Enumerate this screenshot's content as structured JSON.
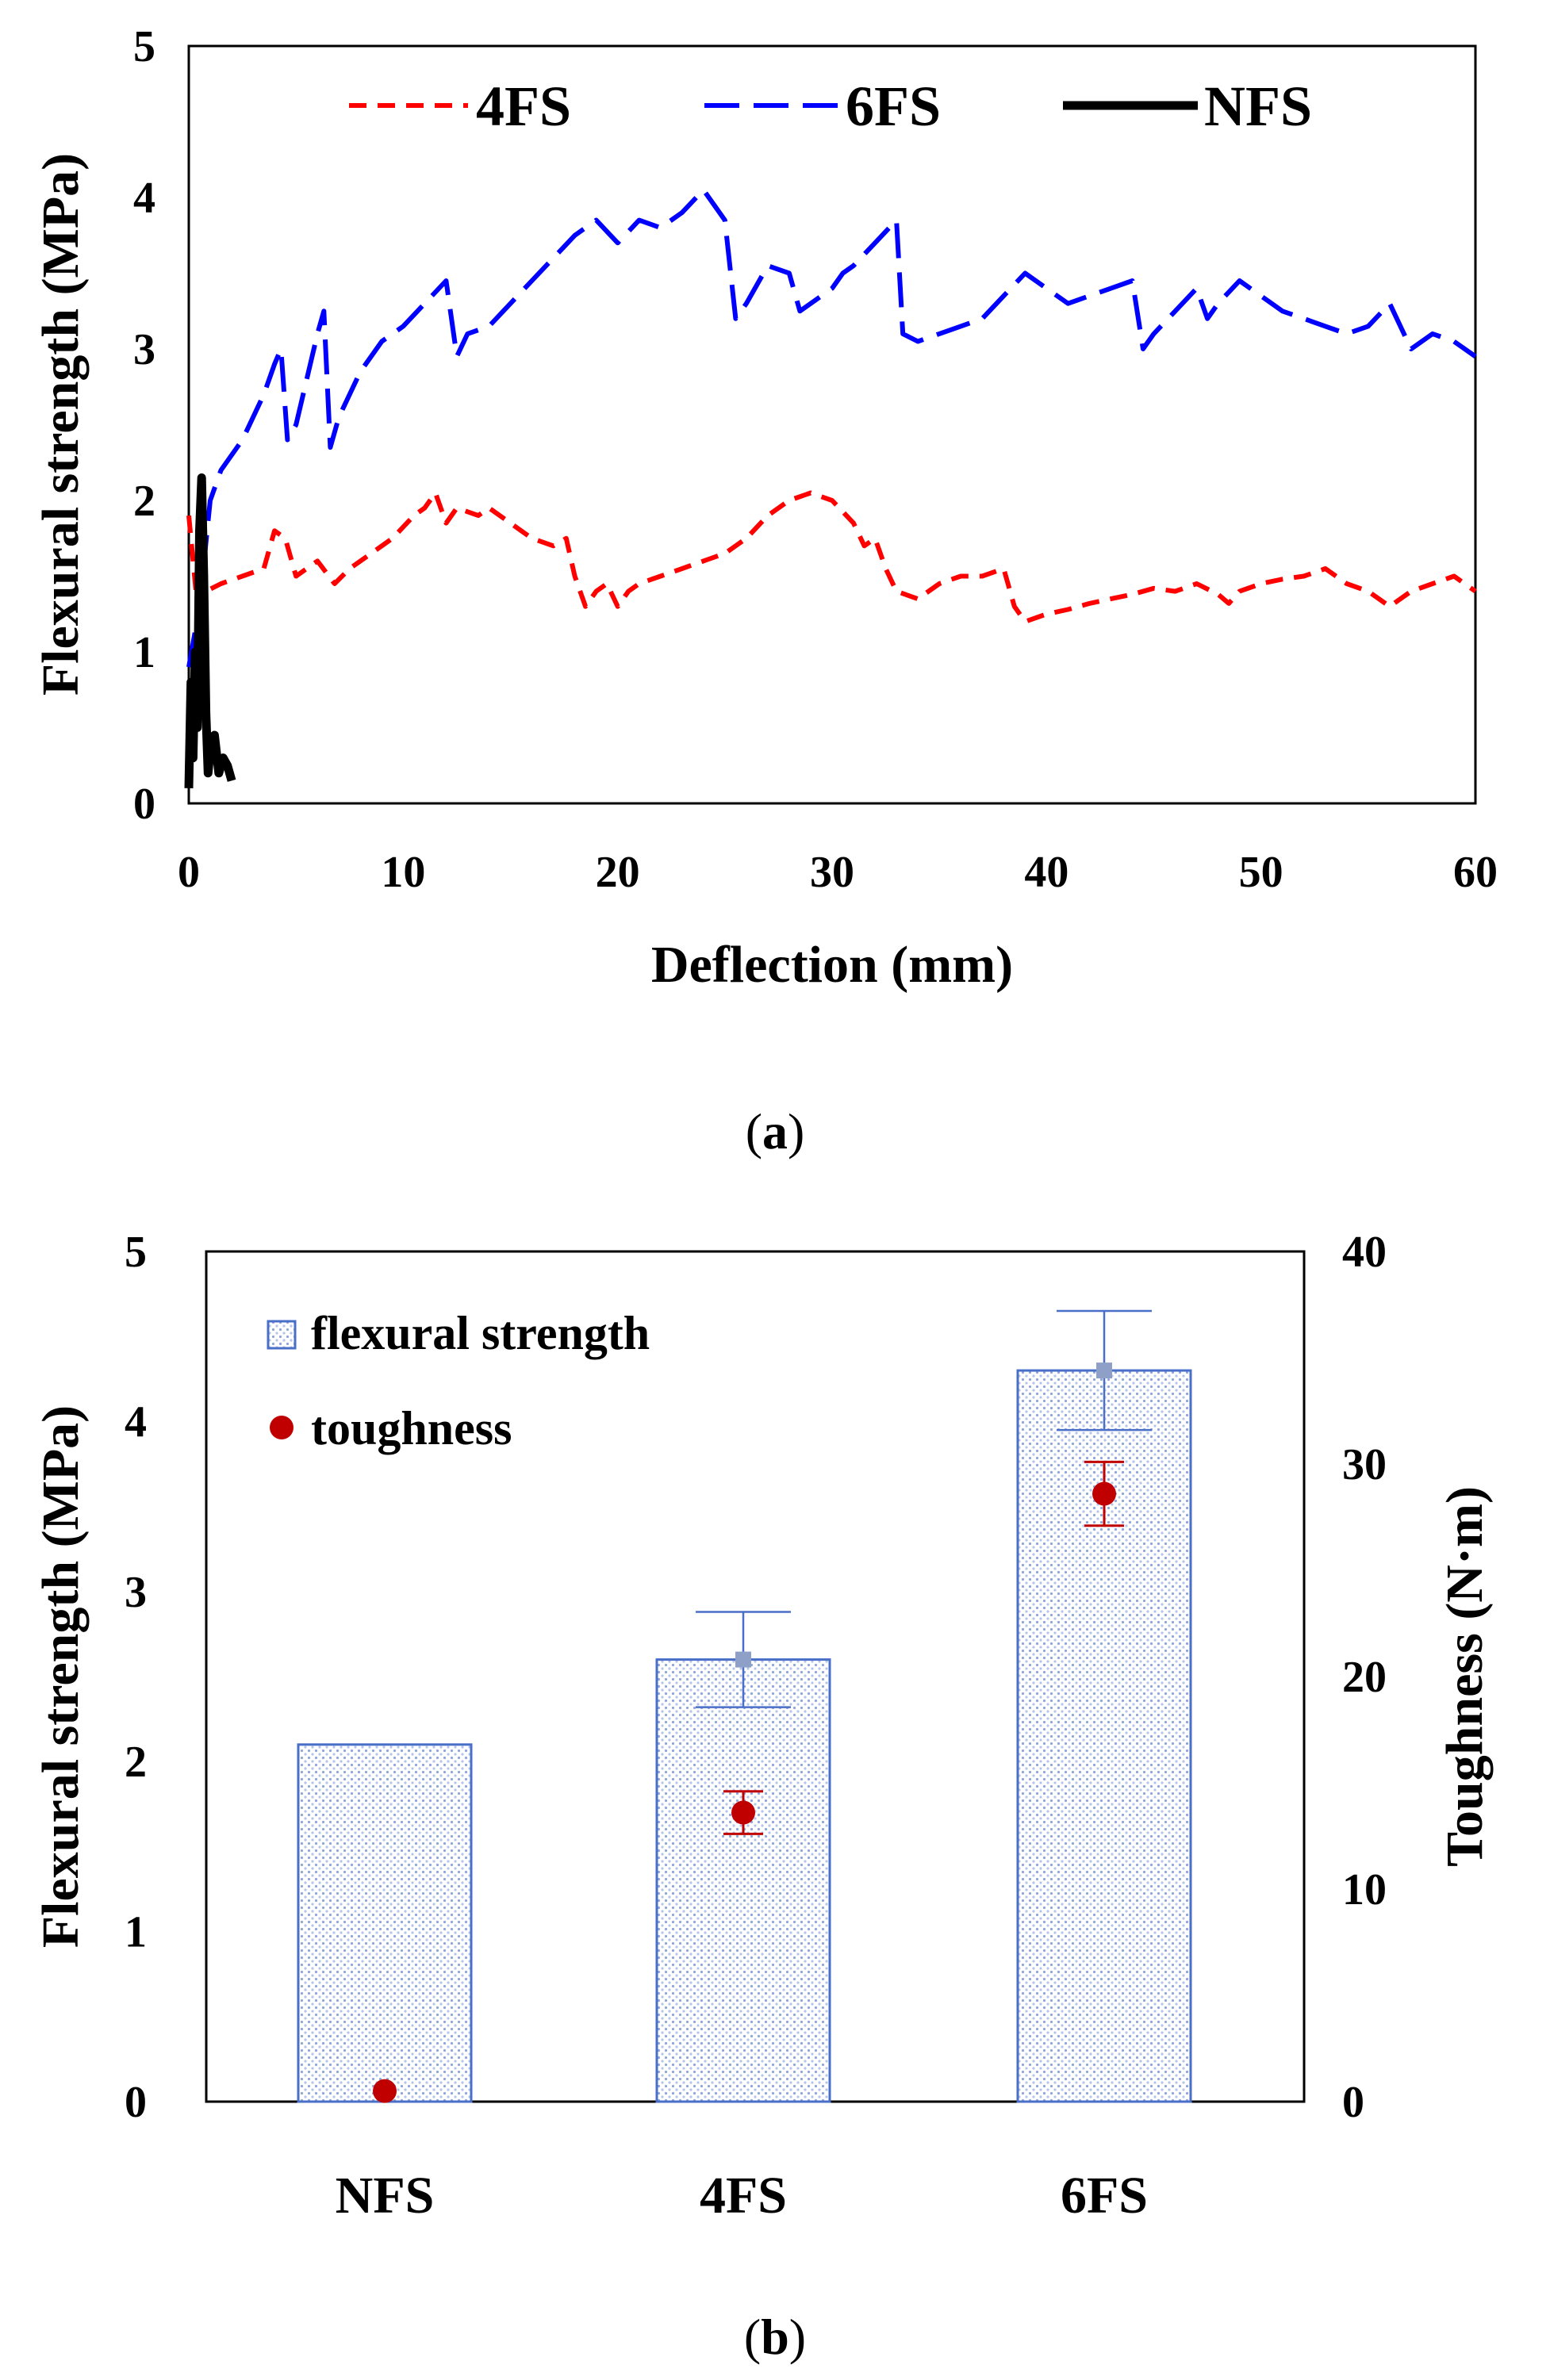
{
  "chart_data": [
    {
      "type": "line",
      "caption": {
        "open": "(",
        "letter": "a",
        "close": ")"
      },
      "xlabel": "Deflection (mm)",
      "ylabel": "Flexural strength (MPa)",
      "xlim": [
        0,
        60
      ],
      "ylim": [
        0,
        5
      ],
      "xticks": [
        0,
        10,
        20,
        30,
        40,
        50,
        60
      ],
      "yticks": [
        0,
        1,
        2,
        3,
        4,
        5
      ],
      "grid": false,
      "legend_position": "top",
      "series": [
        {
          "name": "4FS",
          "color": "#ff0000",
          "style": "short-dash",
          "points": [
            [
              0,
              1.9
            ],
            [
              0.2,
              1.6
            ],
            [
              0.4,
              1.3
            ],
            [
              0.8,
              1.4
            ],
            [
              1.5,
              1.45
            ],
            [
              2.5,
              1.5
            ],
            [
              3.5,
              1.55
            ],
            [
              4,
              1.8
            ],
            [
              4.5,
              1.75
            ],
            [
              5,
              1.5
            ],
            [
              5.5,
              1.55
            ],
            [
              6,
              1.6
            ],
            [
              6.8,
              1.45
            ],
            [
              7.5,
              1.55
            ],
            [
              8.5,
              1.65
            ],
            [
              9.5,
              1.75
            ],
            [
              10.5,
              1.9
            ],
            [
              11,
              1.95
            ],
            [
              11.5,
              2.05
            ],
            [
              12,
              1.85
            ],
            [
              12.5,
              1.95
            ],
            [
              13.5,
              1.9
            ],
            [
              14,
              1.95
            ],
            [
              15,
              1.85
            ],
            [
              16,
              1.75
            ],
            [
              17,
              1.7
            ],
            [
              17.6,
              1.75
            ],
            [
              18,
              1.5
            ],
            [
              18.5,
              1.3
            ],
            [
              19,
              1.4
            ],
            [
              19.5,
              1.45
            ],
            [
              20,
              1.3
            ],
            [
              20.5,
              1.4
            ],
            [
              21,
              1.45
            ],
            [
              22,
              1.5
            ],
            [
              23,
              1.55
            ],
            [
              24,
              1.6
            ],
            [
              25,
              1.65
            ],
            [
              26,
              1.75
            ],
            [
              27,
              1.9
            ],
            [
              28,
              2.0
            ],
            [
              29,
              2.05
            ],
            [
              30,
              2.0
            ],
            [
              31,
              1.85
            ],
            [
              31.5,
              1.7
            ],
            [
              32,
              1.75
            ],
            [
              32.5,
              1.55
            ],
            [
              33,
              1.4
            ],
            [
              34,
              1.35
            ],
            [
              35,
              1.45
            ],
            [
              36,
              1.5
            ],
            [
              37,
              1.5
            ],
            [
              38,
              1.55
            ],
            [
              38.5,
              1.3
            ],
            [
              39,
              1.2
            ],
            [
              40,
              1.25
            ],
            [
              41,
              1.28
            ],
            [
              42,
              1.32
            ],
            [
              43,
              1.35
            ],
            [
              44,
              1.38
            ],
            [
              45,
              1.42
            ],
            [
              46,
              1.4
            ],
            [
              47,
              1.45
            ],
            [
              48,
              1.38
            ],
            [
              48.5,
              1.32
            ],
            [
              49,
              1.4
            ],
            [
              50,
              1.45
            ],
            [
              51,
              1.48
            ],
            [
              52,
              1.5
            ],
            [
              53,
              1.55
            ],
            [
              54,
              1.45
            ],
            [
              55,
              1.4
            ],
            [
              56,
              1.3
            ],
            [
              57,
              1.4
            ],
            [
              58,
              1.45
            ],
            [
              59,
              1.5
            ],
            [
              60,
              1.4
            ]
          ]
        },
        {
          "name": "6FS",
          "color": "#0000ff",
          "style": "long-dash",
          "points": [
            [
              0,
              0.9
            ],
            [
              0.5,
              1.3
            ],
            [
              1,
              2.0
            ],
            [
              1.5,
              2.2
            ],
            [
              2,
              2.3
            ],
            [
              2.5,
              2.4
            ],
            [
              3,
              2.55
            ],
            [
              3.5,
              2.7
            ],
            [
              4,
              2.9
            ],
            [
              4.3,
              3.0
            ],
            [
              4.6,
              2.4
            ],
            [
              5,
              2.5
            ],
            [
              5.5,
              2.8
            ],
            [
              6,
              3.1
            ],
            [
              6.3,
              3.25
            ],
            [
              6.6,
              2.35
            ],
            [
              7,
              2.55
            ],
            [
              8,
              2.85
            ],
            [
              9,
              3.05
            ],
            [
              10,
              3.15
            ],
            [
              11,
              3.3
            ],
            [
              12,
              3.45
            ],
            [
              12.5,
              2.95
            ],
            [
              13,
              3.1
            ],
            [
              14,
              3.15
            ],
            [
              15,
              3.3
            ],
            [
              16,
              3.45
            ],
            [
              17,
              3.6
            ],
            [
              18,
              3.75
            ],
            [
              19,
              3.85
            ],
            [
              20,
              3.7
            ],
            [
              21,
              3.85
            ],
            [
              22,
              3.8
            ],
            [
              23,
              3.9
            ],
            [
              24,
              4.05
            ],
            [
              24.5,
              3.95
            ],
            [
              25,
              3.85
            ],
            [
              25.5,
              3.2
            ],
            [
              26,
              3.3
            ],
            [
              27,
              3.55
            ],
            [
              28,
              3.5
            ],
            [
              28.5,
              3.25
            ],
            [
              29,
              3.3
            ],
            [
              30,
              3.4
            ],
            [
              30.5,
              3.5
            ],
            [
              31,
              3.55
            ],
            [
              32,
              3.7
            ],
            [
              33,
              3.85
            ],
            [
              33.3,
              3.1
            ],
            [
              34,
              3.05
            ],
            [
              35,
              3.1
            ],
            [
              36,
              3.15
            ],
            [
              37,
              3.2
            ],
            [
              38,
              3.35
            ],
            [
              39,
              3.5
            ],
            [
              40,
              3.4
            ],
            [
              41,
              3.3
            ],
            [
              42,
              3.35
            ],
            [
              43,
              3.4
            ],
            [
              44,
              3.45
            ],
            [
              44.5,
              3.0
            ],
            [
              45,
              3.1
            ],
            [
              46,
              3.25
            ],
            [
              47,
              3.4
            ],
            [
              47.5,
              3.2
            ],
            [
              48,
              3.3
            ],
            [
              49,
              3.45
            ],
            [
              50,
              3.35
            ],
            [
              51,
              3.25
            ],
            [
              52,
              3.2
            ],
            [
              53,
              3.15
            ],
            [
              54,
              3.1
            ],
            [
              55,
              3.15
            ],
            [
              56,
              3.3
            ],
            [
              57,
              3.0
            ],
            [
              58,
              3.1
            ],
            [
              59,
              3.05
            ],
            [
              60,
              2.95
            ]
          ]
        },
        {
          "name": "NFS",
          "color": "#000000",
          "style": "solid",
          "points": [
            [
              0,
              0.1
            ],
            [
              0.1,
              0.8
            ],
            [
              0.2,
              0.3
            ],
            [
              0.3,
              1.0
            ],
            [
              0.4,
              0.5
            ],
            [
              0.5,
              1.8
            ],
            [
              0.6,
              2.15
            ],
            [
              0.7,
              1.5
            ],
            [
              0.8,
              0.6
            ],
            [
              0.9,
              0.2
            ],
            [
              1,
              0.35
            ],
            [
              1.2,
              0.45
            ],
            [
              1.4,
              0.2
            ],
            [
              1.6,
              0.3
            ],
            [
              1.8,
              0.25
            ],
            [
              2,
              0.15
            ]
          ]
        }
      ]
    },
    {
      "type": "bar",
      "caption": {
        "open": "(",
        "letter": "b",
        "close": ")"
      },
      "categories": [
        "NFS",
        "4FS",
        "6FS"
      ],
      "ylabel": "Flexural strength (MPa)",
      "y2label": "Toughness (N·m)",
      "ylim": [
        0,
        5
      ],
      "y2lim": [
        0,
        40
      ],
      "yticks": [
        0,
        1,
        2,
        3,
        4,
        5
      ],
      "y2ticks": [
        0,
        10,
        20,
        30,
        40
      ],
      "grid": false,
      "legend_position": "top-left",
      "series": [
        {
          "name": "flexural strength",
          "axis": "left",
          "color": "#4a6fc9",
          "values": [
            2.1,
            2.6,
            4.3
          ],
          "error": [
            null,
            0.28,
            0.35
          ]
        },
        {
          "name": "toughness",
          "axis": "right",
          "color": "#c00000",
          "values": [
            0.5,
            13.6,
            28.6
          ],
          "error": [
            null,
            1.0,
            1.5
          ]
        }
      ]
    }
  ]
}
